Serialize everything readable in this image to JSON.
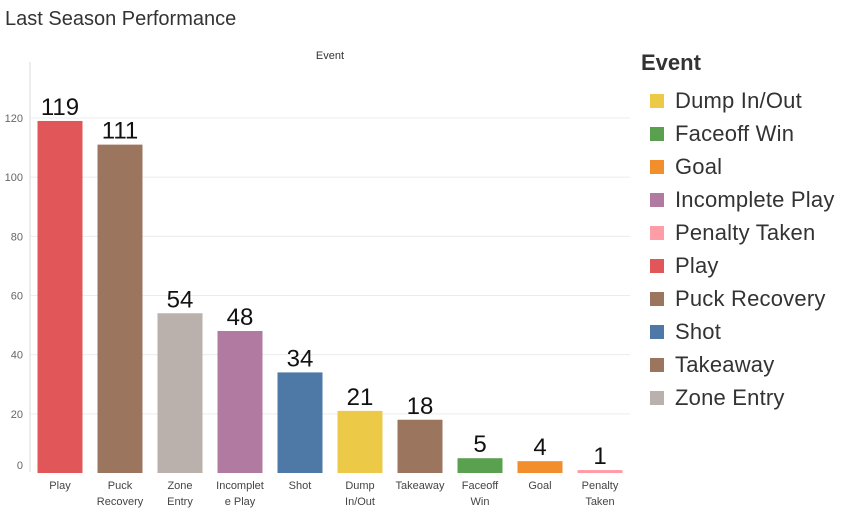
{
  "title": "Last Season Performance",
  "chart_data": {
    "type": "bar",
    "header": "Event",
    "categories": [
      "Play",
      "Puck Recovery",
      "Zone Entry",
      "Incomplete Play",
      "Shot",
      "Dump In/Out",
      "Takeaway",
      "Faceoff Win",
      "Goal",
      "Penalty Taken"
    ],
    "category_tick_labels": [
      [
        "Play"
      ],
      [
        "Puck",
        "Recovery"
      ],
      [
        "Zone",
        "Entry"
      ],
      [
        "Incomplet",
        "e Play"
      ],
      [
        "Shot"
      ],
      [
        "Dump",
        "In/Out"
      ],
      [
        "Takeaway"
      ],
      [
        "Faceoff",
        "Win"
      ],
      [
        "Goal"
      ],
      [
        "Penalty",
        "Taken"
      ]
    ],
    "values": [
      119,
      111,
      54,
      48,
      34,
      21,
      18,
      5,
      4,
      1
    ],
    "colors": [
      "#e15759",
      "#9c755f",
      "#bab0ac",
      "#b07aa1",
      "#4e79a7",
      "#edc948",
      "#9c755f",
      "#59a14f",
      "#f28e2b",
      "#ff9da7"
    ],
    "ylim": [
      0,
      130
    ],
    "yticks": [
      0,
      20,
      40,
      60,
      80,
      100,
      120
    ],
    "grid": true,
    "legend_position": "right",
    "legend": {
      "title": "Event",
      "items": [
        {
          "label": "Dump In/Out",
          "color": "#edc948"
        },
        {
          "label": "Faceoff Win",
          "color": "#59a14f"
        },
        {
          "label": "Goal",
          "color": "#f28e2b"
        },
        {
          "label": "Incomplete Play",
          "color": "#b07aa1"
        },
        {
          "label": "Penalty Taken",
          "color": "#ff9da7"
        },
        {
          "label": "Play",
          "color": "#e15759"
        },
        {
          "label": "Puck Recovery",
          "color": "#9c755f"
        },
        {
          "label": "Shot",
          "color": "#4e79a7"
        },
        {
          "label": "Takeaway",
          "color": "#9c755f"
        },
        {
          "label": "Zone Entry",
          "color": "#bab0ac"
        }
      ]
    }
  }
}
